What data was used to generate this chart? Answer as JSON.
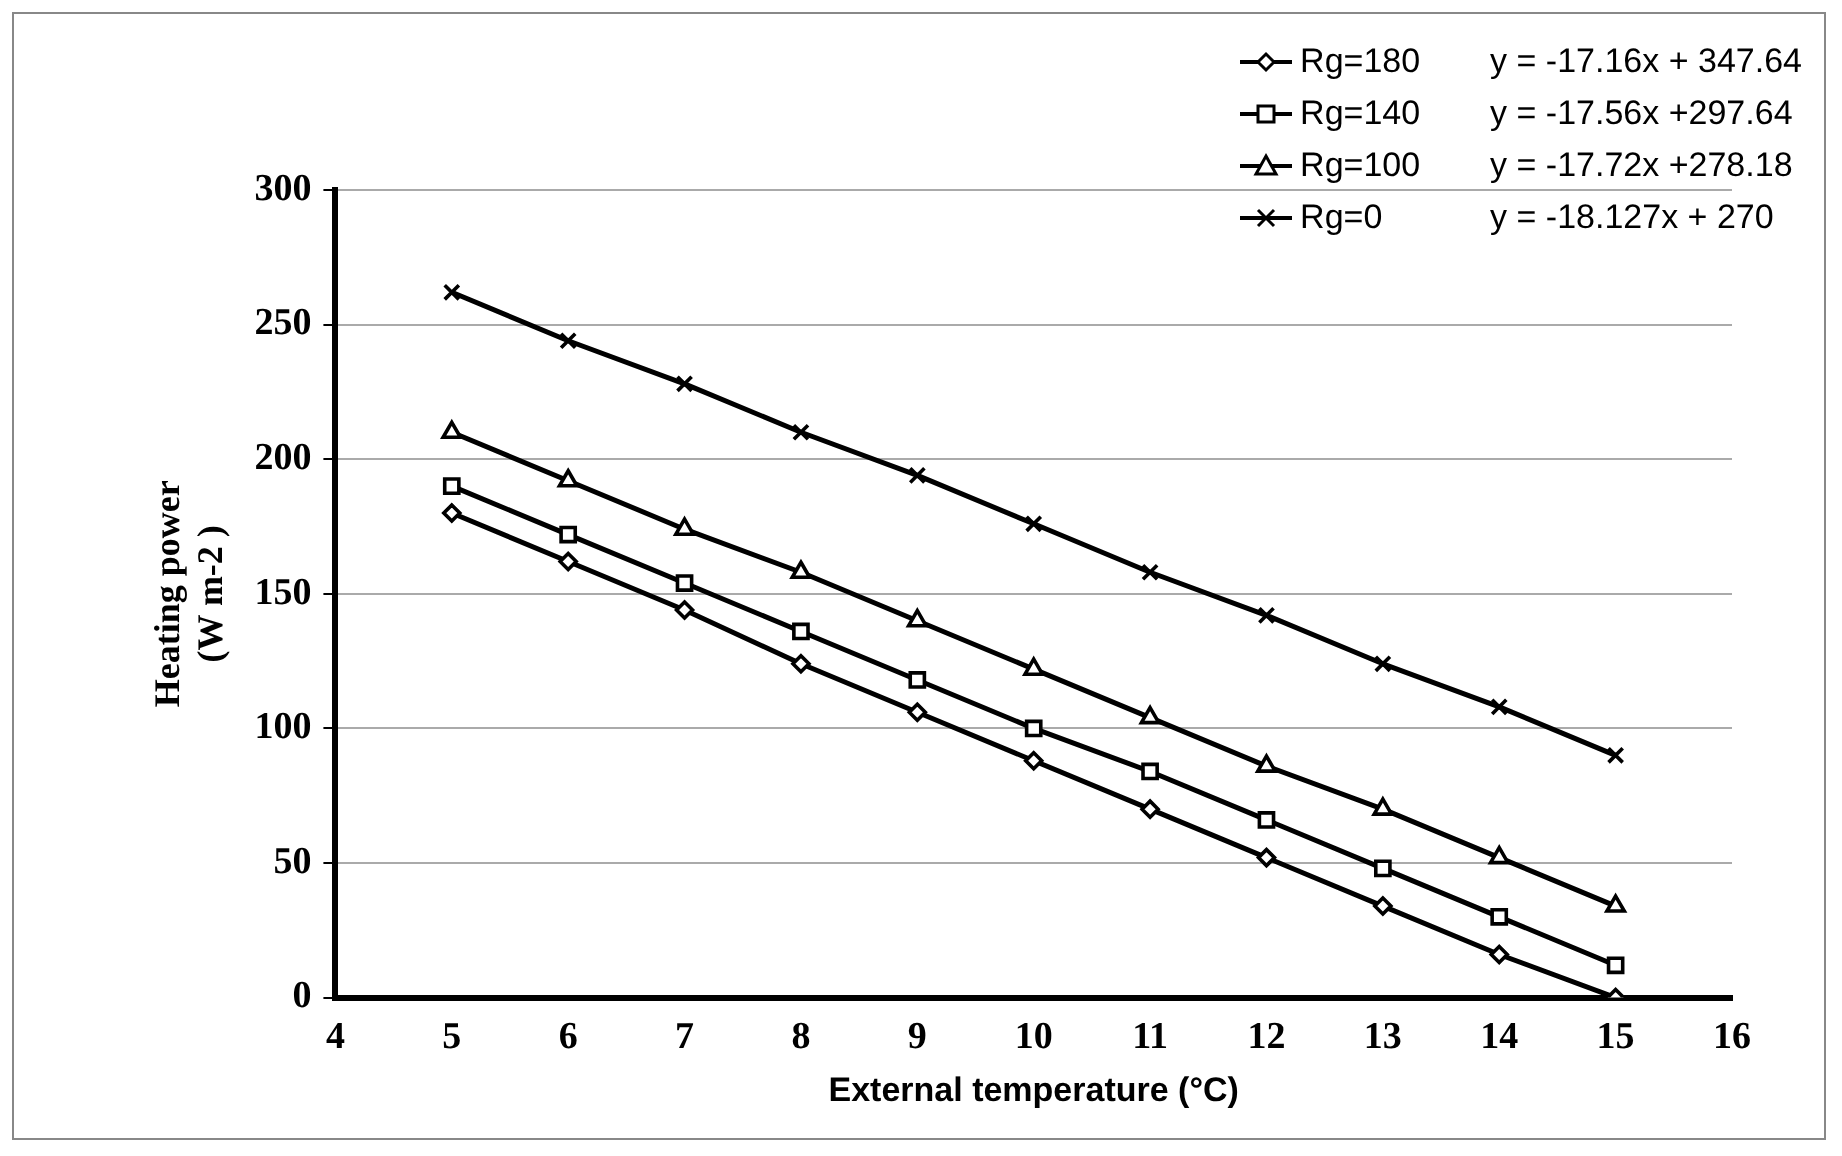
{
  "chart_data": {
    "type": "line",
    "xlabel": "External temperature (°C)",
    "ylabel": "Heating power\n(W m-2 )",
    "x": [
      5,
      6,
      7,
      8,
      9,
      10,
      11,
      12,
      13,
      14,
      15
    ],
    "xlim": [
      4,
      16
    ],
    "xticks": [
      4,
      5,
      6,
      7,
      8,
      9,
      10,
      11,
      12,
      13,
      14,
      15,
      16
    ],
    "ylim": [
      0,
      300
    ],
    "yticks": [
      0,
      50,
      100,
      150,
      200,
      250,
      300
    ],
    "grid": "y",
    "legend": "top right",
    "line_style": "solid",
    "series": [
      {
        "name": "Rg=180",
        "color": "#000000",
        "marker": "diamond",
        "values": [
          180,
          162,
          144,
          124,
          106,
          88,
          70,
          52,
          34,
          16,
          0
        ]
      },
      {
        "name": "Rg=140",
        "color": "#000000",
        "marker": "square",
        "values": [
          190,
          172,
          154,
          136,
          118,
          100,
          84,
          66,
          48,
          30,
          12
        ]
      },
      {
        "name": "Rg=100",
        "color": "#000000",
        "marker": "triangle",
        "values": [
          210,
          192,
          174,
          158,
          140,
          122,
          104,
          86,
          70,
          52,
          34
        ]
      },
      {
        "name": "Rg=0",
        "color": "#000000",
        "marker": "cross",
        "values": [
          262,
          244,
          228,
          210,
          194,
          176,
          158,
          142,
          124,
          108,
          90
        ]
      }
    ],
    "annotations": [
      "y = -17.16x + 347.64",
      "y = -17.56x +297.64",
      "y = -17.72x +278.18",
      "y = -18.127x + 270"
    ]
  }
}
